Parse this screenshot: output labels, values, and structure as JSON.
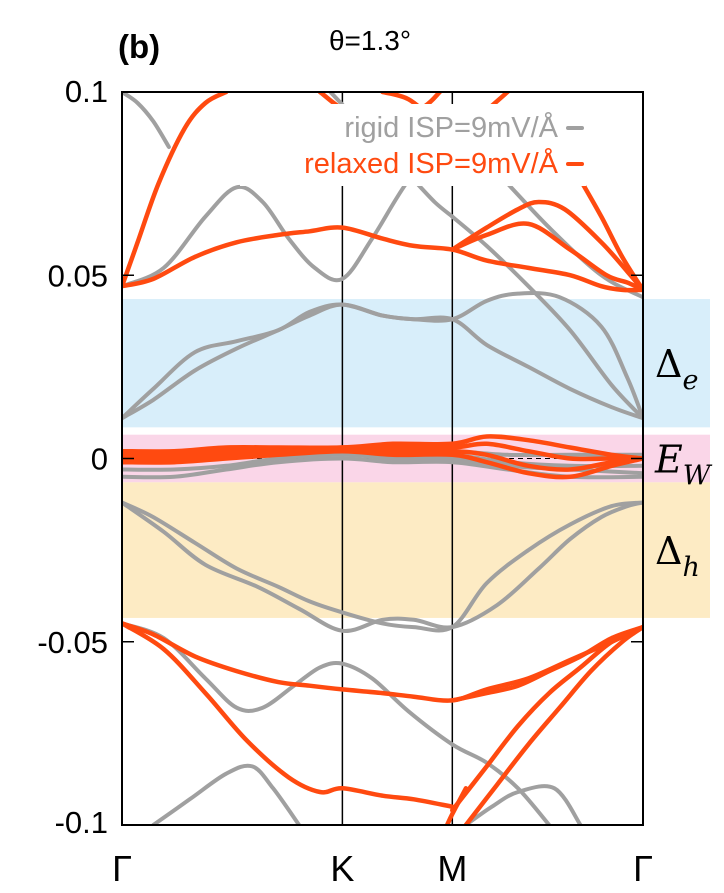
{
  "chart_data": {
    "type": "line",
    "panel_label": "(b)",
    "title": "θ=1.3°",
    "ylim": [
      -0.1,
      0.1
    ],
    "yticks": [
      {
        "value": 0.1,
        "label": "0.1"
      },
      {
        "value": 0.05,
        "label": "0.05"
      },
      {
        "value": 0,
        "label": "0"
      },
      {
        "value": -0.05,
        "label": "-0.05"
      },
      {
        "value": -0.1,
        "label": "-0.1"
      }
    ],
    "xlim": [
      0,
      1
    ],
    "xticks": [
      {
        "value": 0,
        "label": "Γ"
      },
      {
        "value": 0.423,
        "label": "K"
      },
      {
        "value": 0.634,
        "label": "M"
      },
      {
        "value": 1,
        "label": "Γ"
      }
    ],
    "zero_line": "dashed",
    "legend_position": "top-right",
    "colors": {
      "rigid": "#a0a0a0",
      "relaxed": "#ff4a10",
      "band_e": "#d8eefa",
      "band_w": "#fad6e8",
      "band_h": "#fdebc4"
    },
    "regions": [
      {
        "name": "gap-electron",
        "label_main": "Δ",
        "label_sub": "e",
        "y_from": 0.0085,
        "y_to": 0.0435,
        "color": "#d8eefa"
      },
      {
        "name": "window",
        "label_main": "E",
        "label_sub": "W",
        "y_from": -0.0065,
        "y_to": 0.0065,
        "color": "#fad6e8"
      },
      {
        "name": "gap-hole",
        "label_main": "Δ",
        "label_sub": "h",
        "y_from": -0.0435,
        "y_to": -0.0065,
        "color": "#fdebc4"
      }
    ],
    "series": [
      {
        "name": "rigid ISP=9mV/Å",
        "color": "#a0a0a0",
        "bands": [
          {
            "x": [
              0,
              0.06,
              0.14,
              0.22,
              0.3,
              0.36,
              0.423,
              0.5,
              0.56,
              0.634,
              0.7,
              0.78,
              0.86,
              0.94,
              1
            ],
            "y": [
              0.011,
              0.016,
              0.024,
              0.03,
              0.035,
              0.039,
              0.042,
              0.039,
              0.038,
              0.038,
              0.031,
              0.025,
              0.019,
              0.014,
              0.011
            ]
          },
          {
            "x": [
              0,
              0.06,
              0.14,
              0.22,
              0.3,
              0.36,
              0.423,
              0.5,
              0.56,
              0.634,
              0.7,
              0.76,
              0.84,
              0.92,
              0.97,
              1
            ],
            "y": [
              0.011,
              0.019,
              0.029,
              0.032,
              0.035,
              0.04,
              0.042,
              0.039,
              0.038,
              0.038,
              0.043,
              0.045,
              0.044,
              0.036,
              0.022,
              0.011
            ]
          },
          {
            "x": [
              0,
              0.08,
              0.16,
              0.22,
              0.27,
              0.32,
              0.37,
              0.423,
              0.48,
              0.55,
              0.634,
              0.72,
              0.82,
              0.92,
              1
            ],
            "y": [
              0.047,
              0.052,
              0.066,
              0.074,
              0.07,
              0.06,
              0.052,
              0.049,
              0.06,
              0.076,
              0.09,
              0.078,
              0.063,
              0.05,
              0.044
            ]
          },
          {
            "x": [
              0,
              0.1,
              0.2,
              0.3,
              0.423,
              0.52,
              0.634,
              0.74,
              0.86,
              1
            ],
            "y": [
              0.001,
              0.002,
              0.002,
              0.002,
              0.002,
              0.002,
              0.002,
              0.001,
              0.001,
              0.001
            ]
          },
          {
            "x": [
              0,
              0.1,
              0.2,
              0.3,
              0.423,
              0.52,
              0.634,
              0.74,
              0.86,
              1
            ],
            "y": [
              -0.001,
              0.0,
              0.001,
              0.001,
              0.002,
              0.001,
              0.001,
              -0.001,
              -0.002,
              -0.002
            ]
          },
          {
            "x": [
              0,
              0.1,
              0.2,
              0.3,
              0.423,
              0.52,
              0.634,
              0.74,
              0.86,
              1
            ],
            "y": [
              -0.003,
              -0.003,
              -0.002,
              0.0,
              0.001,
              0.0,
              0.0,
              -0.002,
              -0.003,
              -0.004
            ]
          },
          {
            "x": [
              0,
              0.1,
              0.2,
              0.3,
              0.423,
              0.52,
              0.634,
              0.74,
              0.86,
              1
            ],
            "y": [
              -0.005,
              -0.005,
              -0.003,
              -0.001,
              0.0,
              -0.001,
              -0.001,
              -0.003,
              -0.005,
              -0.005
            ]
          },
          {
            "x": [
              0,
              0.08,
              0.16,
              0.26,
              0.34,
              0.423,
              0.5,
              0.56,
              0.634,
              0.72,
              0.8,
              0.86,
              0.92,
              0.97,
              1
            ],
            "y": [
              -0.012,
              -0.02,
              -0.029,
              -0.035,
              -0.041,
              -0.047,
              -0.044,
              -0.044,
              -0.046,
              -0.04,
              -0.03,
              -0.022,
              -0.016,
              -0.013,
              -0.012
            ]
          },
          {
            "x": [
              0,
              0.06,
              0.14,
              0.22,
              0.3,
              0.36,
              0.423,
              0.5,
              0.56,
              0.634,
              0.7,
              0.78,
              0.86,
              0.94,
              1
            ],
            "y": [
              -0.012,
              -0.016,
              -0.023,
              -0.03,
              -0.035,
              -0.039,
              -0.042,
              -0.045,
              -0.046,
              -0.046,
              -0.034,
              -0.025,
              -0.018,
              -0.013,
              -0.012
            ]
          },
          {
            "x": [
              0,
              0.08,
              0.16,
              0.22,
              0.27,
              0.33,
              0.38,
              0.423,
              0.48,
              0.55,
              0.634,
              0.7,
              0.76,
              0.82
            ],
            "y": [
              -0.045,
              -0.049,
              -0.06,
              -0.068,
              -0.068,
              -0.062,
              -0.057,
              -0.056,
              -0.06,
              -0.069,
              -0.078,
              -0.083,
              -0.09,
              -0.1
            ]
          },
          {
            "x": [
              0.06,
              0.13,
              0.2,
              0.25,
              0.29,
              0.34
            ],
            "y": [
              -0.1,
              -0.093,
              -0.086,
              -0.084,
              -0.09,
              -0.1
            ]
          },
          {
            "x": [
              0.66,
              0.71,
              0.76,
              0.83,
              0.88
            ],
            "y": [
              -0.1,
              -0.095,
              -0.091,
              -0.09,
              -0.1
            ]
          },
          {
            "x": [
              0,
              0.03,
              0.06,
              0.09
            ],
            "y": [
              0.1,
              0.097,
              0.092,
              0.085
            ]
          },
          {
            "x": [
              0.4,
              0.44,
              0.48,
              0.52,
              0.56,
              0.6,
              0.634
            ],
            "y": [
              0.1,
              0.094,
              0.088,
              0.082,
              0.076,
              0.07,
              0.066
            ]
          },
          {
            "x": [
              0.634,
              0.7,
              0.78,
              0.86,
              0.94,
              1
            ],
            "y": [
              0.066,
              0.058,
              0.047,
              0.035,
              0.02,
              0.011
            ]
          }
        ]
      },
      {
        "name": "relaxed ISP=9mV/Å",
        "color": "#ff4a10",
        "bands": [
          {
            "x": [
              0,
              0.06,
              0.14,
              0.22,
              0.3,
              0.36,
              0.423,
              0.5,
              0.56,
              0.634,
              0.7,
              0.78,
              0.86,
              0.92,
              0.96,
              1
            ],
            "y": [
              0.047,
              0.049,
              0.055,
              0.059,
              0.061,
              0.062,
              0.063,
              0.06,
              0.058,
              0.057,
              0.054,
              0.052,
              0.05,
              0.047,
              0.046,
              0.046
            ]
          },
          {
            "x": [
              0,
              0.03,
              0.07,
              0.12,
              0.16,
              0.2
            ],
            "y": [
              0.047,
              0.059,
              0.075,
              0.09,
              0.097,
              0.1
            ]
          },
          {
            "x": [
              0.634,
              0.7,
              0.76,
              0.8,
              0.85,
              0.92,
              0.97,
              1
            ],
            "y": [
              0.057,
              0.063,
              0.068,
              0.07,
              0.068,
              0.059,
              0.051,
              0.046
            ]
          },
          {
            "x": [
              0.634,
              0.7,
              0.78,
              0.86,
              0.93,
              0.97,
              1
            ],
            "y": [
              0.057,
              0.061,
              0.064,
              0.057,
              0.05,
              0.048,
              0.046
            ]
          },
          {
            "x": [
              0.5,
              0.55,
              0.6,
              0.634
            ],
            "y": [
              0.1,
              0.098,
              0.092,
              0.086
            ]
          },
          {
            "x": [
              0.634,
              0.66,
              0.7,
              0.74
            ],
            "y": [
              0.086,
              0.09,
              0.095,
              0.1
            ]
          },
          {
            "x": [
              0.88,
              0.92,
              0.96,
              1
            ],
            "y": [
              0.076,
              0.066,
              0.055,
              0.046
            ]
          },
          {
            "x": [
              0,
              0.1,
              0.2,
              0.3,
              0.423,
              0.52,
              0.634,
              0.7,
              0.78,
              0.86,
              0.94,
              1
            ],
            "y": [
              0.002,
              0.002,
              0.003,
              0.003,
              0.003,
              0.004,
              0.004,
              0.006,
              0.005,
              0.003,
              0.001,
              0.0
            ]
          },
          {
            "x": [
              0,
              0.1,
              0.2,
              0.3,
              0.423,
              0.52,
              0.634,
              0.7,
              0.78,
              0.86,
              0.94,
              1
            ],
            "y": [
              0.001,
              0.001,
              0.002,
              0.002,
              0.003,
              0.003,
              0.003,
              0.004,
              0.002,
              0.0,
              0.0,
              0.0
            ]
          },
          {
            "x": [
              0,
              0.1,
              0.2,
              0.3,
              0.423,
              0.52,
              0.634,
              0.7,
              0.78,
              0.86,
              0.94,
              1
            ],
            "y": [
              0.0,
              0.0,
              0.001,
              0.002,
              0.002,
              0.002,
              0.002,
              0.001,
              -0.002,
              -0.003,
              -0.001,
              0.0
            ]
          },
          {
            "x": [
              0,
              0.1,
              0.2,
              0.3,
              0.423,
              0.52,
              0.634,
              0.7,
              0.78,
              0.86,
              0.94,
              1
            ],
            "y": [
              -0.001,
              -0.001,
              0.0,
              0.001,
              0.002,
              0.001,
              0.001,
              -0.001,
              -0.004,
              -0.005,
              -0.002,
              0.0
            ]
          },
          {
            "x": [
              0,
              0.06,
              0.14,
              0.22,
              0.3,
              0.36,
              0.423,
              0.5,
              0.56,
              0.634,
              0.7,
              0.78,
              0.86,
              0.94,
              1
            ],
            "y": [
              -0.045,
              -0.048,
              -0.054,
              -0.058,
              -0.061,
              -0.062,
              -0.063,
              -0.064,
              -0.065,
              -0.066,
              -0.063,
              -0.06,
              -0.055,
              -0.05,
              -0.046
            ]
          },
          {
            "x": [
              0,
              0.08,
              0.16,
              0.24,
              0.32,
              0.38,
              0.423,
              0.5,
              0.56,
              0.634
            ],
            "y": [
              -0.045,
              -0.052,
              -0.064,
              -0.077,
              -0.087,
              -0.091,
              -0.09,
              -0.092,
              -0.093,
              -0.095
            ]
          },
          {
            "x": [
              0.634,
              0.7,
              0.76,
              0.82,
              0.88,
              0.94,
              1
            ],
            "y": [
              -0.066,
              -0.064,
              -0.062,
              -0.058,
              -0.054,
              -0.049,
              -0.046
            ]
          },
          {
            "x": [
              0.634,
              0.7,
              0.76,
              0.82,
              0.88,
              0.94,
              1
            ],
            "y": [
              -0.096,
              -0.084,
              -0.073,
              -0.064,
              -0.057,
              -0.05,
              -0.046
            ]
          },
          {
            "x": [
              0.66,
              0.72,
              0.78,
              0.84,
              0.9,
              0.96,
              1
            ],
            "y": [
              -0.1,
              -0.089,
              -0.078,
              -0.068,
              -0.058,
              -0.05,
              -0.046
            ]
          },
          {
            "x": [
              0.624,
              0.634,
              0.66
            ],
            "y": [
              -0.1,
              -0.097,
              -0.09
            ]
          },
          {
            "x": [
              0.38,
              0.44,
              0.52,
              0.58,
              0.61
            ],
            "y": [
              0.1,
              0.094,
              0.092,
              0.096,
              0.1
            ]
          }
        ]
      }
    ]
  }
}
